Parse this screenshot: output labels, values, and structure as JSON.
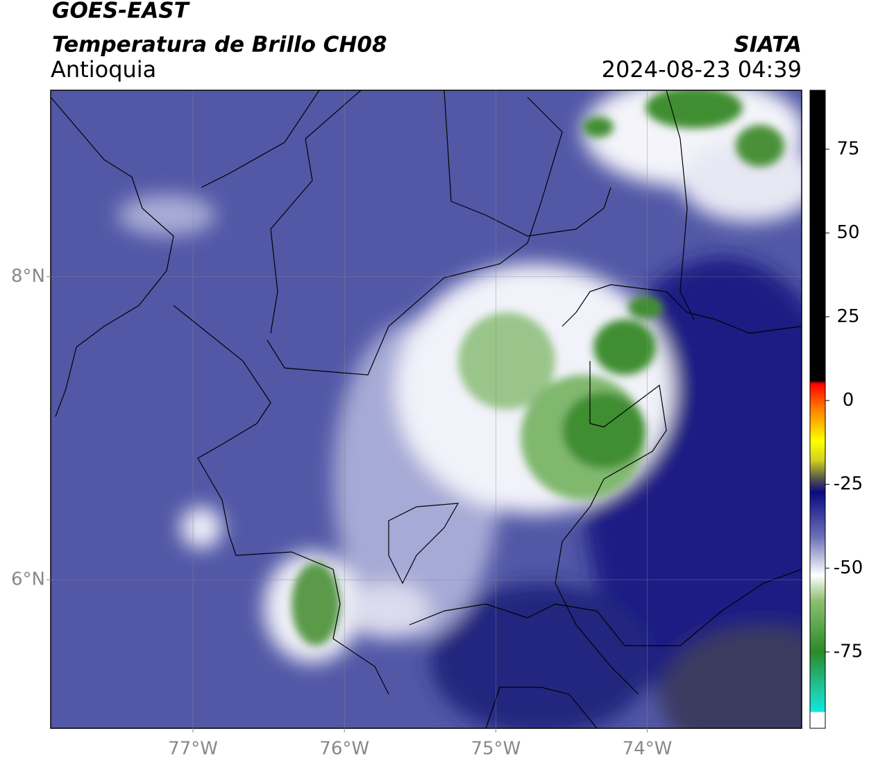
{
  "header": {
    "satellite": "GOES-EAST",
    "product": "Temperatura de Brillo CH08",
    "region": "Antioquia",
    "source": "SIATA",
    "datetime": "2024-08-23 04:39"
  },
  "map": {
    "xlim": [
      -77.94,
      -72.98
    ],
    "ylim": [
      5.02,
      9.23
    ],
    "xticks": [
      {
        "value": -77,
        "label": "77°W"
      },
      {
        "value": -76,
        "label": "76°W"
      },
      {
        "value": -75,
        "label": "75°W"
      },
      {
        "value": -74,
        "label": "74°W"
      }
    ],
    "yticks": [
      {
        "value": 8,
        "label": "8°N"
      },
      {
        "value": 6,
        "label": "6°N"
      }
    ],
    "grid": true
  },
  "colorbar": {
    "lim": [
      -97.8,
      92.6
    ],
    "ticks": [
      75,
      50,
      25,
      0,
      -25,
      -50,
      -75
    ]
  }
}
